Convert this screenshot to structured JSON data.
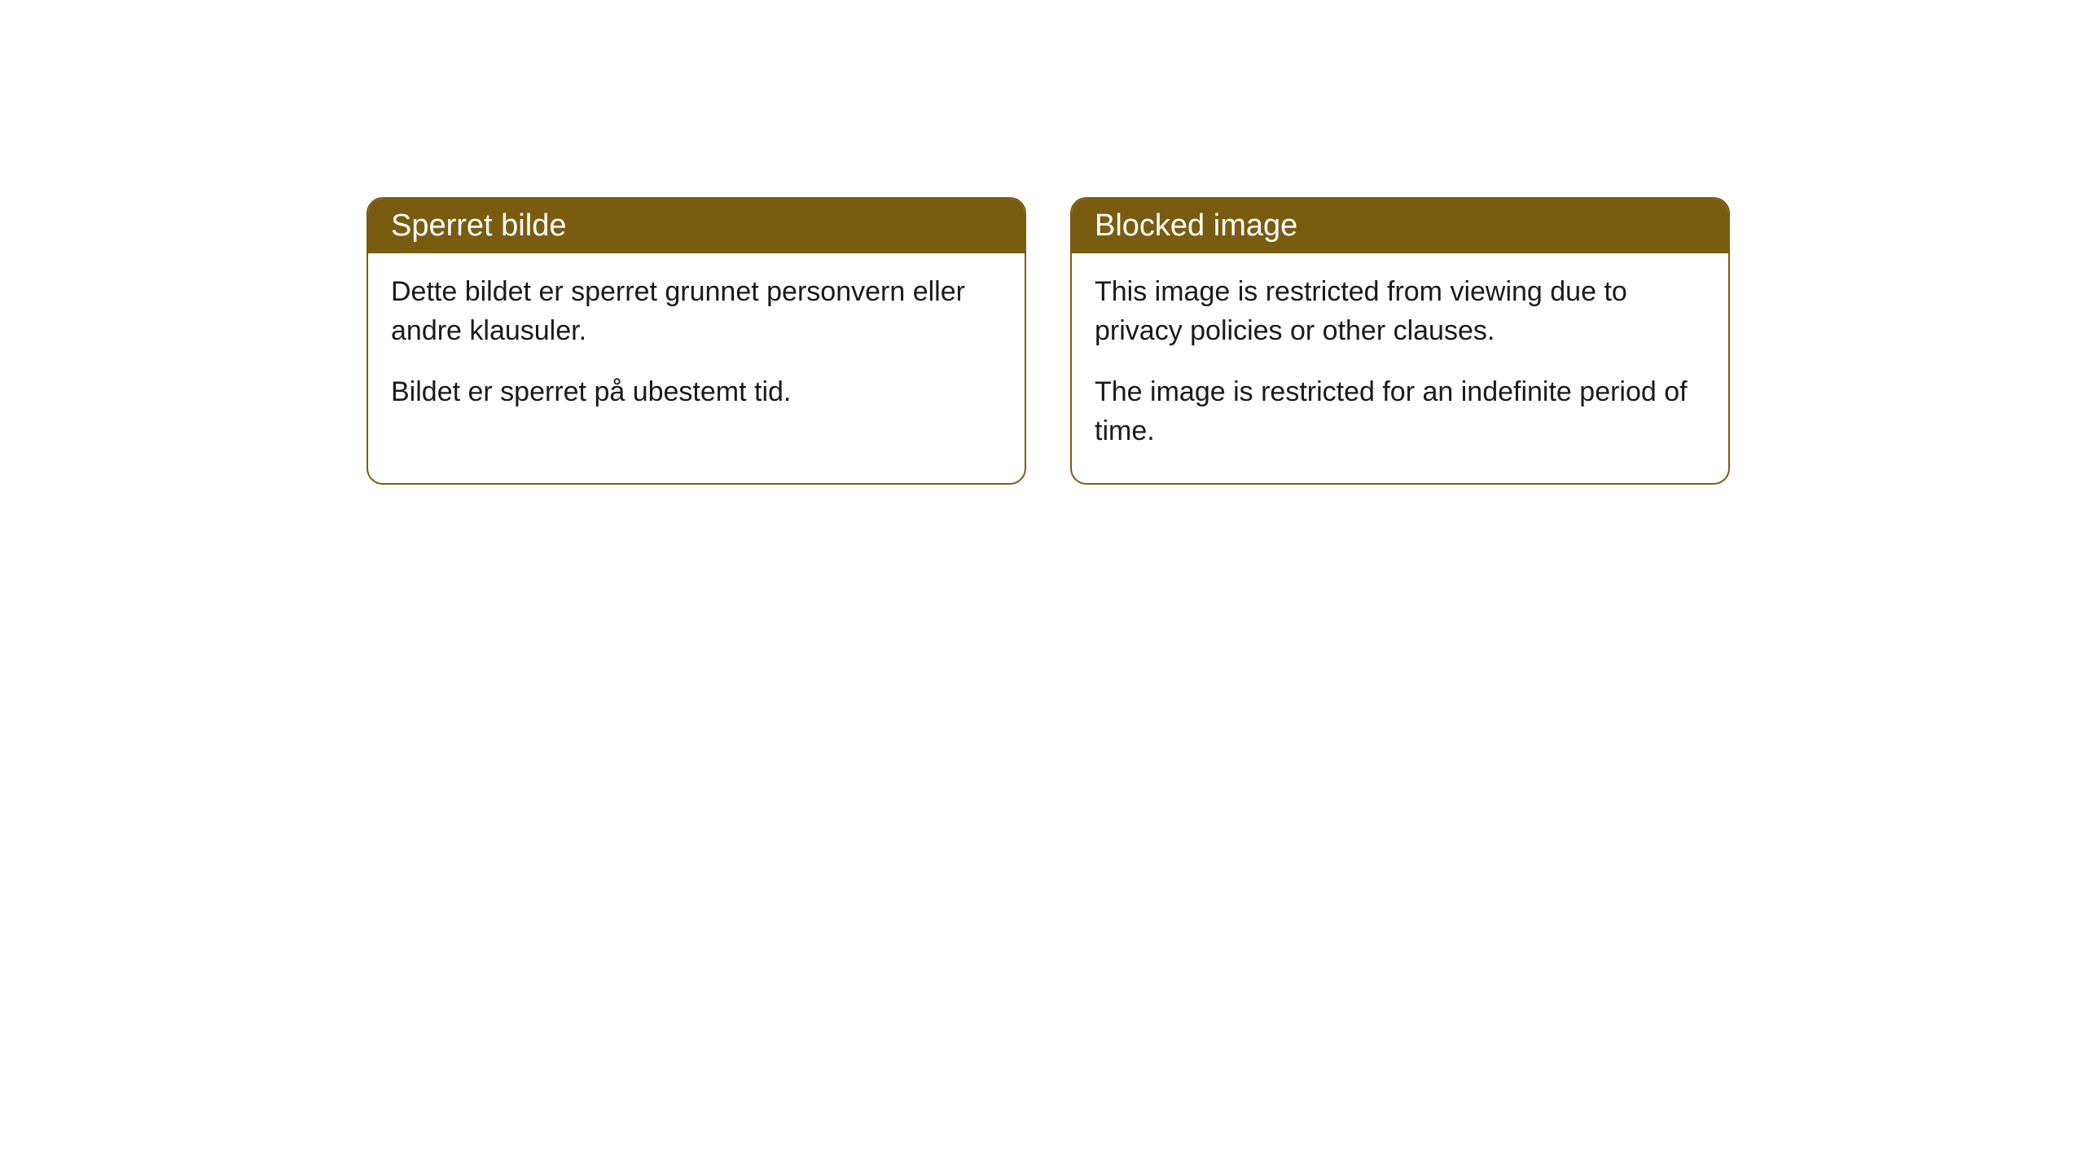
{
  "cards": [
    {
      "title": "Sperret bilde",
      "paragraph1": "Dette bildet er sperret grunnet personvern eller andre klausuler.",
      "paragraph2": "Bildet er sperret på ubestemt tid."
    },
    {
      "title": "Blocked image",
      "paragraph1": "This image is restricted from viewing due to privacy policies or other clauses.",
      "paragraph2": "The image is restricted for an indefinite period of time."
    }
  ],
  "styling": {
    "card_border_color": "#7a5c11",
    "card_header_bg": "#7a5c11",
    "card_header_text_color": "#ffffff",
    "card_body_bg": "#ffffff",
    "card_body_text_color": "#1a1a1a",
    "page_bg": "#ffffff",
    "border_radius": 20,
    "title_fontsize": 38,
    "body_fontsize": 34
  }
}
